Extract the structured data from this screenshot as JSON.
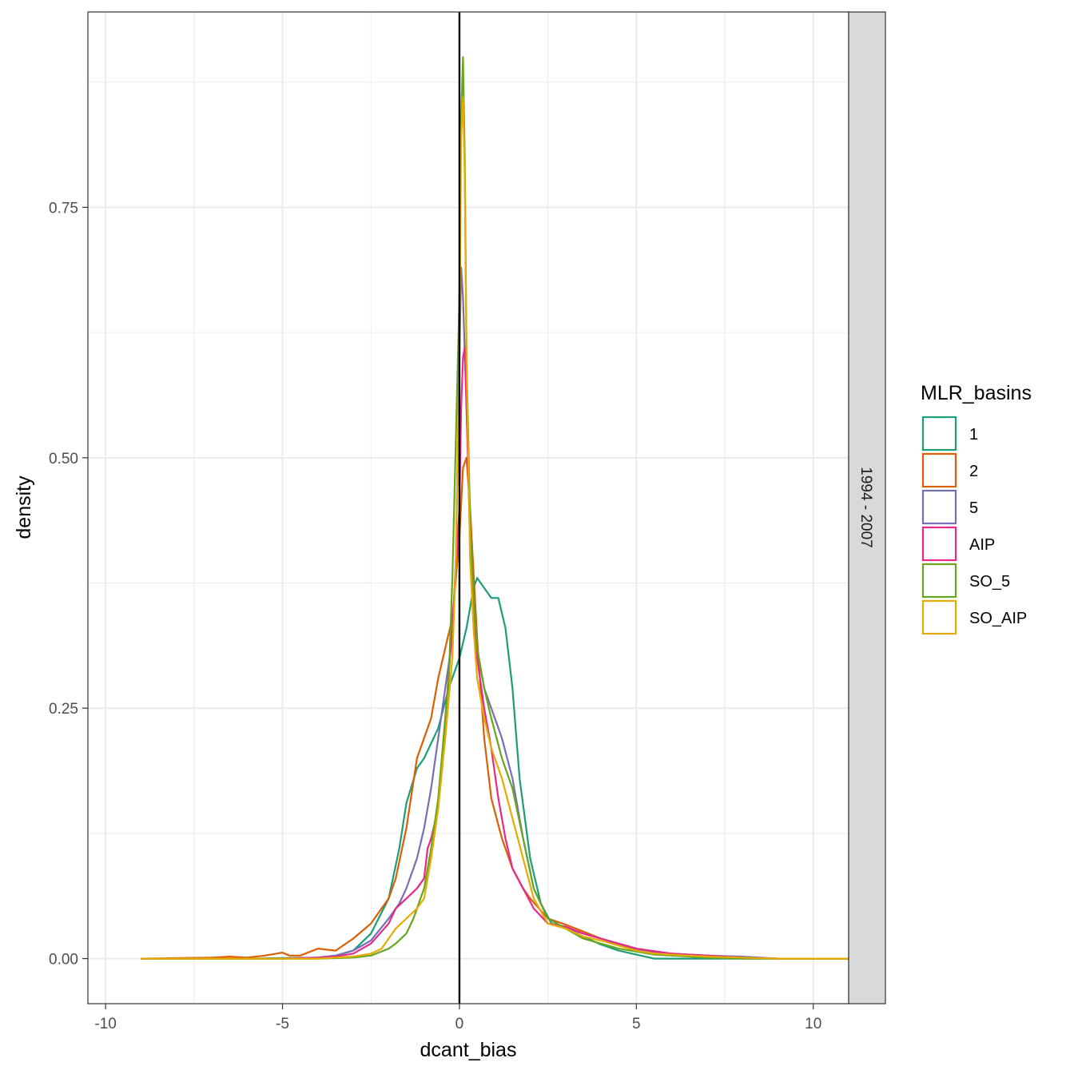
{
  "chart_data": {
    "type": "line",
    "subtype": "density",
    "title": "",
    "xlabel": "dcant_bias",
    "ylabel": "density",
    "xlim": [
      -10.5,
      11
    ],
    "ylim": [
      -0.045,
      0.945
    ],
    "x_ticks": [
      -10,
      -5,
      0,
      5,
      10
    ],
    "x_tick_labels": [
      "-10",
      "-5",
      "0",
      "5",
      "10"
    ],
    "y_ticks": [
      0,
      0.25,
      0.5,
      0.75
    ],
    "y_tick_labels": [
      "0.00",
      "0.25",
      "0.50",
      "0.75"
    ],
    "grid": true,
    "reference_line": {
      "x": 0,
      "color": "#000000"
    },
    "facet_strip": "1994 - 2007",
    "legend": {
      "title": "MLR_basins",
      "position": "right"
    },
    "series": [
      {
        "name": "1",
        "color": "#1B9E77",
        "x": [
          -9,
          -6,
          -4,
          -3.5,
          -3,
          -2.5,
          -2,
          -1.7,
          -1.5,
          -1.2,
          -1,
          -0.6,
          -0.3,
          0,
          0.2,
          0.4,
          0.5,
          0.7,
          0.9,
          1.1,
          1.3,
          1.5,
          1.7,
          2,
          2.3,
          2.6,
          3,
          3.5,
          4,
          4.5,
          5,
          5.5,
          6,
          7,
          8,
          9,
          11
        ],
        "y": [
          0,
          0,
          0.001,
          0.003,
          0.008,
          0.025,
          0.06,
          0.11,
          0.155,
          0.19,
          0.2,
          0.23,
          0.27,
          0.3,
          0.33,
          0.37,
          0.38,
          0.37,
          0.36,
          0.36,
          0.33,
          0.27,
          0.18,
          0.1,
          0.055,
          0.035,
          0.03,
          0.022,
          0.014,
          0.008,
          0.004,
          0,
          0,
          0,
          0,
          0,
          0
        ]
      },
      {
        "name": "2",
        "color": "#D95F02",
        "x": [
          -9,
          -7,
          -6.5,
          -6,
          -5.5,
          -5,
          -4.8,
          -4.5,
          -4,
          -3.5,
          -3,
          -2.5,
          -2.2,
          -2,
          -1.8,
          -1.5,
          -1.2,
          -1,
          -0.8,
          -0.6,
          -0.4,
          -0.2,
          0,
          0.1,
          0.2,
          0.3,
          0.5,
          0.7,
          0.9,
          1.2,
          1.5,
          1.8,
          2,
          2.5,
          3,
          3.5,
          4,
          4.5,
          5,
          5.5,
          6,
          7,
          8,
          9,
          11
        ],
        "y": [
          0,
          0.001,
          0.002,
          0.001,
          0.003,
          0.006,
          0.003,
          0.003,
          0.01,
          0.008,
          0.02,
          0.035,
          0.05,
          0.06,
          0.08,
          0.13,
          0.2,
          0.22,
          0.24,
          0.28,
          0.31,
          0.34,
          0.42,
          0.49,
          0.5,
          0.45,
          0.32,
          0.22,
          0.16,
          0.12,
          0.09,
          0.07,
          0.06,
          0.04,
          0.034,
          0.027,
          0.02,
          0.015,
          0.01,
          0.006,
          0.005,
          0.003,
          0.001,
          0,
          0
        ]
      },
      {
        "name": "5",
        "color": "#7570B3",
        "x": [
          -9,
          -5,
          -4,
          -3.5,
          -3,
          -2.5,
          -2,
          -1.7,
          -1.5,
          -1.2,
          -1,
          -0.8,
          -0.6,
          -0.4,
          -0.2,
          -0.1,
          0,
          0.05,
          0.1,
          0.2,
          0.3,
          0.4,
          0.5,
          0.7,
          0.9,
          1.2,
          1.5,
          1.8,
          2.1,
          2.5,
          3,
          3.5,
          4,
          4.5,
          5,
          6,
          7,
          8,
          9,
          11
        ],
        "y": [
          0,
          0,
          0.001,
          0.003,
          0.008,
          0.018,
          0.04,
          0.055,
          0.07,
          0.1,
          0.13,
          0.17,
          0.22,
          0.27,
          0.32,
          0.4,
          0.6,
          0.69,
          0.66,
          0.55,
          0.44,
          0.36,
          0.31,
          0.27,
          0.25,
          0.22,
          0.18,
          0.12,
          0.07,
          0.04,
          0.03,
          0.025,
          0.02,
          0.014,
          0.009,
          0.005,
          0.003,
          0.002,
          0,
          0
        ]
      },
      {
        "name": "AIP",
        "color": "#E7298A",
        "x": [
          -9,
          -5,
          -4,
          -3.5,
          -3,
          -2.5,
          -2,
          -1.8,
          -1.5,
          -1.2,
          -1,
          -0.9,
          -0.8,
          -0.6,
          -0.4,
          -0.2,
          0,
          0.05,
          0.1,
          0.15,
          0.2,
          0.3,
          0.4,
          0.5,
          0.7,
          0.9,
          1.1,
          1.3,
          1.5,
          1.8,
          2.1,
          2.5,
          3,
          3.5,
          4,
          4.5,
          5,
          6,
          7,
          8,
          9,
          11
        ],
        "y": [
          0,
          0,
          0.001,
          0.002,
          0.005,
          0.015,
          0.035,
          0.05,
          0.06,
          0.07,
          0.08,
          0.11,
          0.12,
          0.15,
          0.24,
          0.33,
          0.45,
          0.55,
          0.6,
          0.61,
          0.55,
          0.42,
          0.34,
          0.3,
          0.25,
          0.21,
          0.16,
          0.12,
          0.09,
          0.07,
          0.05,
          0.035,
          0.032,
          0.025,
          0.02,
          0.015,
          0.01,
          0.005,
          0.003,
          0.001,
          0,
          0
        ]
      },
      {
        "name": "SO_5",
        "color": "#66A61E",
        "x": [
          -9,
          -4,
          -3,
          -2.5,
          -2,
          -1.8,
          -1.5,
          -1.3,
          -1,
          -0.8,
          -0.6,
          -0.4,
          -0.3,
          -0.2,
          0,
          0.05,
          0.1,
          0.15,
          0.2,
          0.3,
          0.4,
          0.5,
          0.7,
          0.9,
          1.2,
          1.5,
          1.8,
          2.1,
          2.5,
          3,
          3.5,
          4,
          4.5,
          5,
          5.5,
          6,
          7,
          8,
          9,
          11
        ],
        "y": [
          0,
          0,
          0.001,
          0.003,
          0.01,
          0.015,
          0.025,
          0.04,
          0.07,
          0.11,
          0.16,
          0.24,
          0.28,
          0.38,
          0.66,
          0.84,
          0.9,
          0.8,
          0.6,
          0.44,
          0.36,
          0.31,
          0.27,
          0.24,
          0.2,
          0.17,
          0.12,
          0.07,
          0.04,
          0.03,
          0.02,
          0.015,
          0.01,
          0.007,
          0.004,
          0.003,
          0.001,
          0,
          0,
          0
        ]
      },
      {
        "name": "SO_AIP",
        "color": "#E6AB02",
        "x": [
          -9,
          -4,
          -3.5,
          -3,
          -2.5,
          -2.2,
          -2,
          -1.8,
          -1.5,
          -1.2,
          -1,
          -0.9,
          -0.8,
          -0.6,
          -0.4,
          -0.2,
          -0.1,
          0,
          0.05,
          0.1,
          0.15,
          0.2,
          0.3,
          0.4,
          0.5,
          0.7,
          0.9,
          1.2,
          1.5,
          1.8,
          2.1,
          2.5,
          3,
          3.5,
          4,
          4.5,
          5,
          5.5,
          6,
          7,
          8,
          9,
          11
        ],
        "y": [
          0,
          0,
          0.001,
          0.002,
          0.005,
          0.01,
          0.02,
          0.03,
          0.04,
          0.05,
          0.06,
          0.08,
          0.1,
          0.15,
          0.22,
          0.3,
          0.4,
          0.6,
          0.82,
          0.86,
          0.78,
          0.6,
          0.4,
          0.33,
          0.28,
          0.24,
          0.21,
          0.18,
          0.14,
          0.1,
          0.06,
          0.035,
          0.03,
          0.022,
          0.018,
          0.013,
          0.008,
          0.005,
          0.004,
          0.002,
          0.001,
          0,
          0
        ]
      }
    ]
  }
}
